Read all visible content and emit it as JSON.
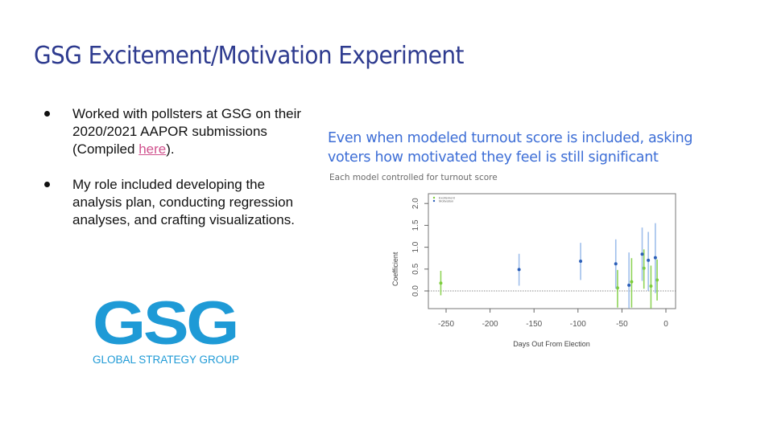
{
  "slide": {
    "title": "GSG Excitement/Motivation Experiment",
    "bullets": [
      {
        "text_before": "Worked with pollsters at GSG on their 2020/2021 AAPOR submissions (Compiled ",
        "link_text": "here",
        "text_after": ")."
      },
      {
        "text_before": "My role included developing the analysis plan, conducting regression analyses, and crafting visualizations.",
        "link_text": "",
        "text_after": ""
      }
    ],
    "logo": {
      "mark": "GSG",
      "tagline": "GLOBAL STRATEGY GROUP",
      "color": "#1e9ad6"
    },
    "colors": {
      "title": "#2e3b8f",
      "link": "#d0518d",
      "chart_heading": "#3d6ed6"
    }
  },
  "chart_panel": {
    "heading": "Even when modeled turnout score is included, asking voters how motivated they feel is still significant",
    "subheading": "Each model controlled for turnout score"
  },
  "chart_data": {
    "type": "scatter",
    "title": "",
    "xlabel": "Days Out From Election",
    "ylabel": "Coefficient",
    "xlim": [
      -270,
      12
    ],
    "ylim": [
      -0.4,
      2.2
    ],
    "xticks": [
      -250,
      -200,
      -150,
      -100,
      -50,
      0
    ],
    "yticks": [
      0.0,
      0.5,
      1.0,
      1.5,
      2.0
    ],
    "reference_line": {
      "y": 0.0,
      "style": "dotted"
    },
    "legend": {
      "position": "top-left",
      "entries": [
        "Excitement",
        "Motivation"
      ]
    },
    "grid": false,
    "series": [
      {
        "name": "Excitement",
        "color": "#7ccd3c",
        "points": [
          {
            "x": -256,
            "y": 0.18,
            "lo": -0.1,
            "hi": 0.46
          },
          {
            "x": -55,
            "y": 0.07,
            "lo": -0.38,
            "hi": 0.48
          },
          {
            "x": -39,
            "y": 0.21,
            "lo": -0.38,
            "hi": 0.75
          },
          {
            "x": -25,
            "y": 0.52,
            "lo": 0.05,
            "hi": 0.95
          },
          {
            "x": -17,
            "y": 0.11,
            "lo": -0.4,
            "hi": 0.58
          },
          {
            "x": -10,
            "y": 0.25,
            "lo": -0.22,
            "hi": 0.72
          }
        ]
      },
      {
        "name": "Motivation",
        "color": "#2c5fb8",
        "ci_color": "#8fb4e8",
        "points": [
          {
            "x": -167,
            "y": 0.49,
            "lo": 0.12,
            "hi": 0.85
          },
          {
            "x": -97,
            "y": 0.68,
            "lo": 0.25,
            "hi": 1.1
          },
          {
            "x": -57,
            "y": 0.62,
            "lo": 0.05,
            "hi": 1.18
          },
          {
            "x": -42,
            "y": 0.13,
            "lo": -0.4,
            "hi": 0.88
          },
          {
            "x": -27,
            "y": 0.84,
            "lo": 0.23,
            "hi": 1.45
          },
          {
            "x": -20,
            "y": 0.7,
            "lo": 0.0,
            "hi": 1.35
          },
          {
            "x": -12,
            "y": 0.76,
            "lo": -0.05,
            "hi": 1.55
          }
        ]
      }
    ]
  }
}
